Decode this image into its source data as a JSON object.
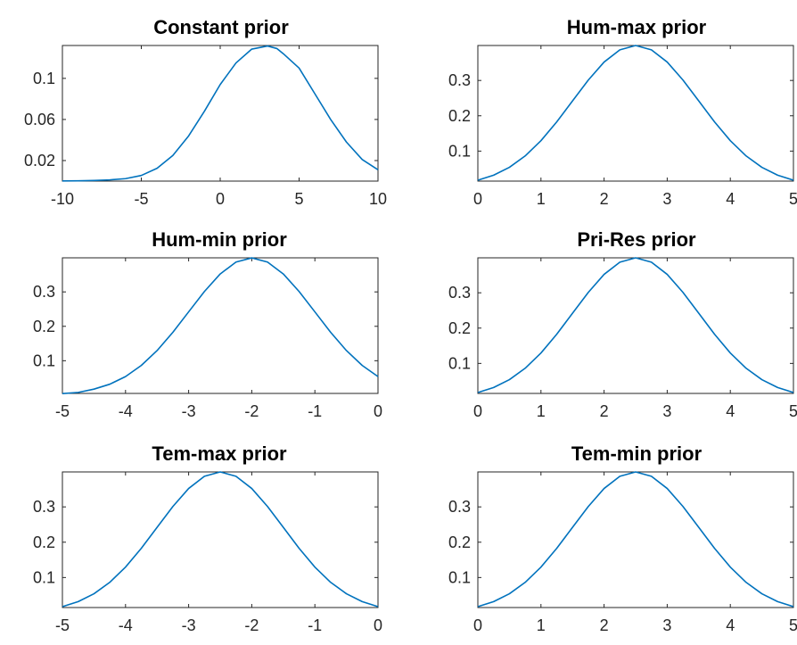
{
  "chart_data": [
    {
      "type": "line",
      "title": "Constant prior",
      "xlim": [
        -10,
        10
      ],
      "ylim": [
        0,
        0.132
      ],
      "xticks": [
        -10,
        -5,
        0,
        5,
        10
      ],
      "xtick_labels": [
        "-10",
        "-5",
        "0",
        "5",
        "10"
      ],
      "yticks": [
        0.02,
        0.06,
        0.1
      ],
      "ytick_labels": [
        "0.02",
        "0.06",
        "0.1"
      ],
      "grid": false,
      "series": [
        {
          "color": "#0072BD",
          "x": [
            -10,
            -9,
            -8,
            -7,
            -6,
            -5,
            -4,
            -3,
            -2,
            -1,
            0,
            1,
            2,
            3,
            3.6,
            4,
            5,
            6,
            7,
            8,
            9,
            10
          ],
          "y": [
            0.0002,
            0.0003,
            0.0006,
            0.0012,
            0.0024,
            0.0055,
            0.0125,
            0.025,
            0.044,
            0.068,
            0.094,
            0.115,
            0.1285,
            0.1315,
            0.129,
            0.124,
            0.11,
            0.085,
            0.06,
            0.038,
            0.021,
            0.011
          ]
        }
      ]
    },
    {
      "type": "line",
      "title": "Hum-max prior",
      "xlim": [
        0,
        5
      ],
      "ylim": [
        0.015,
        0.399
      ],
      "xticks": [
        0,
        1,
        2,
        3,
        4,
        5
      ],
      "xtick_labels": [
        "0",
        "1",
        "2",
        "3",
        "4",
        "5"
      ],
      "yticks": [
        0.1,
        0.2,
        0.3
      ],
      "ytick_labels": [
        "0.1",
        "0.2",
        "0.3"
      ],
      "grid": false,
      "series": [
        {
          "color": "#0072BD",
          "x": [
            0,
            0.25,
            0.5,
            0.75,
            1,
            1.25,
            1.5,
            1.75,
            2,
            2.25,
            2.5,
            2.75,
            3,
            3.25,
            3.5,
            3.75,
            4,
            4.25,
            4.5,
            4.75,
            5
          ],
          "y": [
            0.0175,
            0.0317,
            0.054,
            0.0863,
            0.1295,
            0.1826,
            0.242,
            0.3011,
            0.3521,
            0.3867,
            0.3989,
            0.3867,
            0.3521,
            0.3011,
            0.242,
            0.1826,
            0.1295,
            0.0863,
            0.054,
            0.0317,
            0.0175
          ]
        }
      ]
    },
    {
      "type": "line",
      "title": "Hum-min prior",
      "xlim": [
        -5,
        0
      ],
      "ylim": [
        0.005,
        0.399
      ],
      "xticks": [
        -5,
        -4,
        -3,
        -2,
        -1,
        0
      ],
      "xtick_labels": [
        "-5",
        "-4",
        "-3",
        "-2",
        "-1",
        "0"
      ],
      "yticks": [
        0.1,
        0.2,
        0.3
      ],
      "ytick_labels": [
        "0.1",
        "0.2",
        "0.3"
      ],
      "grid": false,
      "series": [
        {
          "color": "#0072BD",
          "x": [
            -5,
            -4.75,
            -4.5,
            -4.25,
            -4,
            -3.75,
            -3.5,
            -3.25,
            -3,
            -2.75,
            -2.5,
            -2.25,
            -2,
            -1.75,
            -1.5,
            -1.25,
            -1,
            -0.75,
            -0.5,
            -0.25,
            0
          ],
          "y": [
            0.0044,
            0.0079,
            0.0175,
            0.0317,
            0.054,
            0.0863,
            0.1295,
            0.1826,
            0.242,
            0.3011,
            0.3521,
            0.3867,
            0.3989,
            0.3867,
            0.3521,
            0.3011,
            0.242,
            0.1826,
            0.1295,
            0.0863,
            0.054
          ]
        }
      ]
    },
    {
      "type": "line",
      "title": "Pri-Res prior",
      "xlim": [
        0,
        5
      ],
      "ylim": [
        0.015,
        0.399
      ],
      "xticks": [
        0,
        1,
        2,
        3,
        4,
        5
      ],
      "xtick_labels": [
        "0",
        "1",
        "2",
        "3",
        "4",
        "5"
      ],
      "yticks": [
        0.1,
        0.2,
        0.3
      ],
      "ytick_labels": [
        "0.1",
        "0.2",
        "0.3"
      ],
      "grid": false,
      "series": [
        {
          "color": "#0072BD",
          "x": [
            0,
            0.25,
            0.5,
            0.75,
            1,
            1.25,
            1.5,
            1.75,
            2,
            2.25,
            2.5,
            2.75,
            3,
            3.25,
            3.5,
            3.75,
            4,
            4.25,
            4.5,
            4.75,
            5
          ],
          "y": [
            0.0175,
            0.0317,
            0.054,
            0.0863,
            0.1295,
            0.1826,
            0.242,
            0.3011,
            0.3521,
            0.3867,
            0.3989,
            0.3867,
            0.3521,
            0.3011,
            0.242,
            0.1826,
            0.1295,
            0.0863,
            0.054,
            0.0317,
            0.0175
          ]
        }
      ]
    },
    {
      "type": "line",
      "title": "Tem-max prior",
      "xlim": [
        -5,
        0
      ],
      "ylim": [
        0.015,
        0.399
      ],
      "xticks": [
        -5,
        -4,
        -3,
        -2,
        -1,
        0
      ],
      "xtick_labels": [
        "-5",
        "-4",
        "-3",
        "-2",
        "-1",
        "0"
      ],
      "yticks": [
        0.1,
        0.2,
        0.3
      ],
      "ytick_labels": [
        "0.1",
        "0.2",
        "0.3"
      ],
      "grid": false,
      "series": [
        {
          "color": "#0072BD",
          "x": [
            -5,
            -4.75,
            -4.5,
            -4.25,
            -4,
            -3.75,
            -3.5,
            -3.25,
            -3,
            -2.75,
            -2.5,
            -2.25,
            -2,
            -1.75,
            -1.5,
            -1.25,
            -1,
            -0.75,
            -0.5,
            -0.25,
            0
          ],
          "y": [
            0.0175,
            0.0317,
            0.054,
            0.0863,
            0.1295,
            0.1826,
            0.242,
            0.3011,
            0.3521,
            0.3867,
            0.3989,
            0.3867,
            0.3521,
            0.3011,
            0.242,
            0.1826,
            0.1295,
            0.0863,
            0.054,
            0.0317,
            0.0175
          ]
        }
      ]
    },
    {
      "type": "line",
      "title": "Tem-min prior",
      "xlim": [
        0,
        5
      ],
      "ylim": [
        0.015,
        0.399
      ],
      "xticks": [
        0,
        1,
        2,
        3,
        4,
        5
      ],
      "xtick_labels": [
        "0",
        "1",
        "2",
        "3",
        "4",
        "5"
      ],
      "yticks": [
        0.1,
        0.2,
        0.3
      ],
      "ytick_labels": [
        "0.1",
        "0.2",
        "0.3"
      ],
      "grid": false,
      "series": [
        {
          "color": "#0072BD",
          "x": [
            0,
            0.25,
            0.5,
            0.75,
            1,
            1.25,
            1.5,
            1.75,
            2,
            2.25,
            2.5,
            2.75,
            3,
            3.25,
            3.5,
            3.75,
            4,
            4.25,
            4.5,
            4.75,
            5
          ],
          "y": [
            0.0175,
            0.0317,
            0.054,
            0.0863,
            0.1295,
            0.1826,
            0.242,
            0.3011,
            0.3521,
            0.3867,
            0.3989,
            0.3867,
            0.3521,
            0.3011,
            0.242,
            0.1826,
            0.1295,
            0.0863,
            0.054,
            0.0317,
            0.0175
          ]
        }
      ]
    }
  ]
}
